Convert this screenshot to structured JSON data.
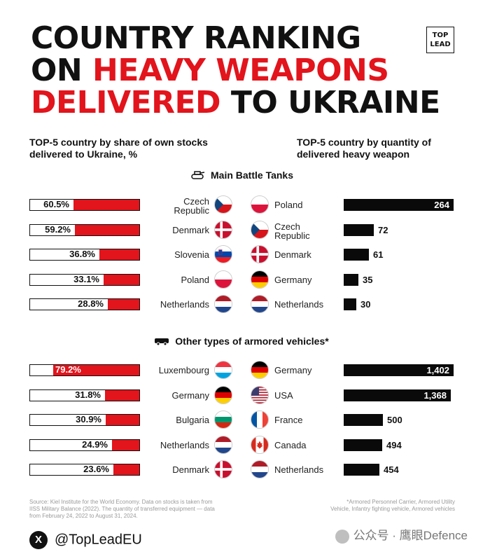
{
  "title": {
    "line1": "COUNTRY RANKING",
    "line2_prefix": "ON ",
    "line2_red": "HEAVY WEAPONS",
    "line3_red": "DELIVERED",
    "line3_suffix": " TO UKRAINE"
  },
  "logo": {
    "line1": "TOP",
    "line2": "LEAD"
  },
  "subheads": {
    "left": [
      "TOP-5 country by share of own stocks",
      "delivered to Ukraine, %"
    ],
    "right": [
      "TOP-5 country by quantity of",
      "delivered heavy weapon"
    ]
  },
  "sections": [
    {
      "title": "Main Battle Tanks",
      "icon": "tank-icon",
      "share": [
        {
          "country": [
            "Czech",
            "Republic"
          ],
          "flag": "cz",
          "value": 60.5,
          "label": "60.5%"
        },
        {
          "country": [
            "Denmark"
          ],
          "flag": "dk",
          "value": 59.2,
          "label": "59.2%"
        },
        {
          "country": [
            "Slovenia"
          ],
          "flag": "si",
          "value": 36.8,
          "label": "36.8%"
        },
        {
          "country": [
            "Poland"
          ],
          "flag": "pl",
          "value": 33.1,
          "label": "33.1%"
        },
        {
          "country": [
            "Netherlands"
          ],
          "flag": "nl",
          "value": 28.8,
          "label": "28.8%"
        }
      ],
      "quantity": [
        {
          "country": [
            "Poland"
          ],
          "flag": "pl",
          "value": 264,
          "label": "264"
        },
        {
          "country": [
            "Czech",
            "Republic"
          ],
          "flag": "cz",
          "value": 72,
          "label": "72"
        },
        {
          "country": [
            "Denmark"
          ],
          "flag": "dk",
          "value": 61,
          "label": "61"
        },
        {
          "country": [
            "Germany"
          ],
          "flag": "de",
          "value": 35,
          "label": "35"
        },
        {
          "country": [
            "Netherlands"
          ],
          "flag": "nl",
          "value": 30,
          "label": "30"
        }
      ],
      "quantity_max": 264
    },
    {
      "title": "Other types of armored vehicles*",
      "icon": "armored-vehicle-icon",
      "share": [
        {
          "country": [
            "Luxembourg"
          ],
          "flag": "lu",
          "value": 79.2,
          "label": "79.2%"
        },
        {
          "country": [
            "Germany"
          ],
          "flag": "de",
          "value": 31.8,
          "label": "31.8%"
        },
        {
          "country": [
            "Bulgaria"
          ],
          "flag": "bg",
          "value": 30.9,
          "label": "30.9%"
        },
        {
          "country": [
            "Netherlands"
          ],
          "flag": "nl",
          "value": 24.9,
          "label": "24.9%"
        },
        {
          "country": [
            "Denmark"
          ],
          "flag": "dk",
          "value": 23.6,
          "label": "23.6%"
        }
      ],
      "quantity": [
        {
          "country": [
            "Germany"
          ],
          "flag": "de",
          "value": 1402,
          "label": "1,402"
        },
        {
          "country": [
            "USA"
          ],
          "flag": "us",
          "value": 1368,
          "label": "1,368"
        },
        {
          "country": [
            "France"
          ],
          "flag": "fr",
          "value": 500,
          "label": "500"
        },
        {
          "country": [
            "Canada"
          ],
          "flag": "ca",
          "value": 494,
          "label": "494"
        },
        {
          "country": [
            "Netherlands"
          ],
          "flag": "nl",
          "value": 454,
          "label": "454"
        }
      ],
      "quantity_max": 1402
    }
  ],
  "chart_data": [
    {
      "type": "bar",
      "title": "Main Battle Tanks",
      "series": [
        {
          "name": "TOP-5 country by share of own stocks delivered to Ukraine, %",
          "categories": [
            "Czech Republic",
            "Denmark",
            "Slovenia",
            "Poland",
            "Netherlands"
          ],
          "values": [
            60.5,
            59.2,
            36.8,
            33.1,
            28.8
          ]
        },
        {
          "name": "TOP-5 country by quantity of delivered heavy weapon",
          "categories": [
            "Poland",
            "Czech Republic",
            "Denmark",
            "Germany",
            "Netherlands"
          ],
          "values": [
            264,
            72,
            61,
            35,
            30
          ]
        }
      ]
    },
    {
      "type": "bar",
      "title": "Other types of armored vehicles*",
      "series": [
        {
          "name": "TOP-5 country by share of own stocks delivered to Ukraine, %",
          "categories": [
            "Luxembourg",
            "Germany",
            "Bulgaria",
            "Netherlands",
            "Denmark"
          ],
          "values": [
            79.2,
            31.8,
            30.9,
            24.9,
            23.6
          ]
        },
        {
          "name": "TOP-5 country by quantity of delivered heavy weapon",
          "categories": [
            "Germany",
            "USA",
            "France",
            "Canada",
            "Netherlands"
          ],
          "values": [
            1402,
            1368,
            500,
            494,
            454
          ]
        }
      ]
    }
  ],
  "notes": {
    "source": [
      "Source: Kiel Institute for the World Economy. Data on stocks is taken from",
      "IISS Military Balance (2022). The quantity of transferred equipment — data",
      "from February 24, 2022 to August 31, 2024."
    ],
    "footnote": [
      "*Armored Personnel Carrier, Armored Utility",
      "Vehicle, Infantry fighting vehicle, Armored vehicles"
    ]
  },
  "footer": {
    "x_glyph": "X",
    "handle": "@TopLeadEU"
  },
  "watermark": "公众号 · 鹰眼Defence",
  "colors": {
    "red": "#e2141c",
    "black": "#0a0a0a"
  }
}
